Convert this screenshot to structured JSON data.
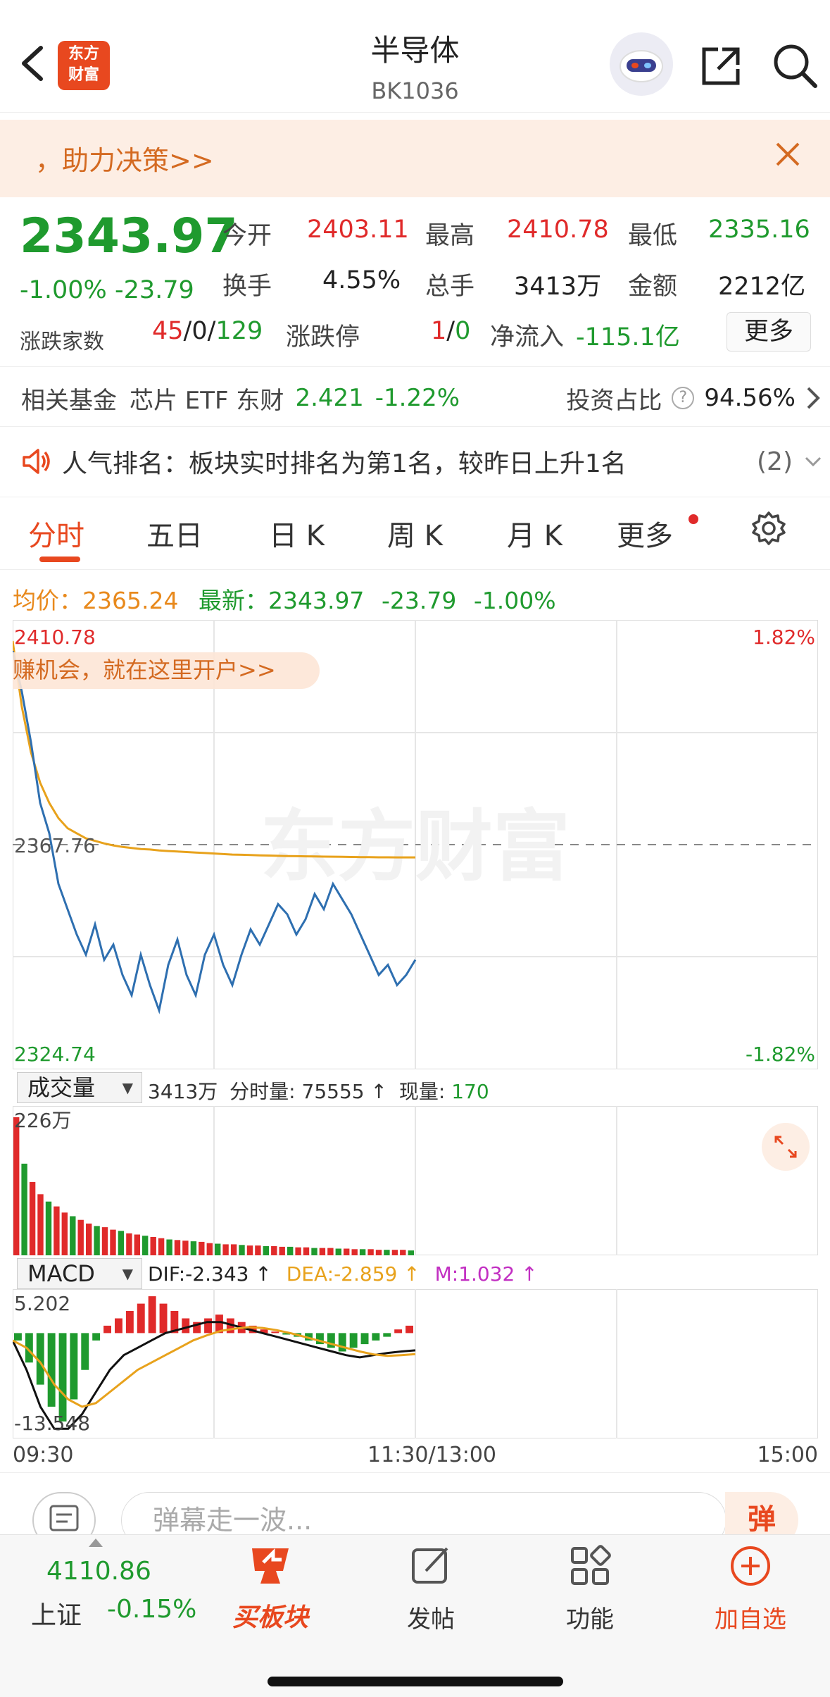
{
  "header": {
    "back_icon": "chevron-left-icon",
    "logo_line1": "东方",
    "logo_line2": "财富",
    "title": "半导体",
    "code": "BK1036"
  },
  "banner": {
    "text": "，助力决策>>",
    "close_icon": "close-icon"
  },
  "quote": {
    "price": "2343.97",
    "change_pct": "-1.00%",
    "change_val": "-23.79",
    "open_label": "今开",
    "open": "2403.11",
    "high_label": "最高",
    "high": "2410.78",
    "low_label": "最低",
    "low": "2335.16",
    "turnover_label": "换手",
    "turnover": "4.55%",
    "volume_label": "总手",
    "volume": "3413万",
    "amount_label": "金额",
    "amount": "2212亿",
    "breadth_label": "涨跌家数",
    "breadth_up": "45",
    "breadth_sep1": "/",
    "breadth_flat": "0",
    "breadth_sep2": "/",
    "breadth_down": "129",
    "limit_label": "涨跌停",
    "limit_up": "1",
    "limit_sep": "/",
    "limit_down": "0",
    "inflow_label": "净流入",
    "inflow": "-115.1亿",
    "more_label": "更多"
  },
  "fund": {
    "label": "相关基金",
    "name": "芯片 ETF 东财",
    "price": "2.421",
    "pct": "-1.22%",
    "ratio_label": "投资占比",
    "ratio": "94.56%"
  },
  "rank": {
    "text": "人气排名：板块实时排名为第1名，较昨日上升1名",
    "count": "(2)"
  },
  "tabs": [
    "分时",
    "五日",
    "日 K",
    "周 K",
    "月 K",
    "更多"
  ],
  "avg_row": {
    "avg_label": "均价：",
    "avg": "2365.24",
    "latest_label": "最新：",
    "latest": "2343.97",
    "chg": "-23.79",
    "pct": "-1.00%"
  },
  "chart_labels": {
    "max": "2410.78",
    "mid": "2367.76",
    "min": "2324.74",
    "max_pct": "1.82%",
    "min_pct": "-1.82%",
    "promo": "赚机会，就在这里开户>>",
    "watermark": "东方财富"
  },
  "volume": {
    "select": "成交量",
    "total": "3413万",
    "detail_label": "分时量:",
    "detail": "75555",
    "arrow": "↑",
    "now_label": "现量:",
    "now": "170",
    "max": "226万"
  },
  "macd": {
    "select": "MACD",
    "dif": "DIF:-2.343 ↑",
    "dea": "DEA:-2.859 ↑",
    "m": "M:1.032 ↑",
    "max": "5.202",
    "min": "-13.548"
  },
  "time_axis": [
    "09:30",
    "11:30/13:00",
    "15:00"
  ],
  "danmu": {
    "placeholder": "弹幕走一波...",
    "btn": "弹"
  },
  "bottom_nav": {
    "index_value": "4110.86",
    "index_name": "上证",
    "index_pct": "-0.15%",
    "buy": "买板块",
    "post": "发帖",
    "func": "功能",
    "add": "加自选"
  },
  "colors": {
    "up": "#e02a2a",
    "down": "#1f9a2e",
    "accent": "#e8481f",
    "avg_line": "#e8a21c",
    "price_line": "#2e6fb0"
  },
  "chart_data": [
    {
      "type": "line",
      "title": "分时",
      "ylim": [
        2324.74,
        2410.78
      ],
      "series": [
        {
          "name": "最新",
          "values": [
            2406,
            2398,
            2388,
            2376,
            2370,
            2360,
            2355,
            2350,
            2346,
            2352,
            2345,
            2348,
            2342,
            2338,
            2346,
            2340,
            2335,
            2344,
            2349,
            2342,
            2338,
            2346,
            2350,
            2344,
            2340,
            2346,
            2351,
            2348,
            2352,
            2356,
            2354,
            2350,
            2353,
            2358,
            2355,
            2360,
            2357,
            2354,
            2350,
            2346,
            2342,
            2344,
            2340,
            2342,
            2345
          ]
        },
        {
          "name": "均价",
          "values": [
            2408,
            2395,
            2386,
            2380,
            2376,
            2373,
            2371,
            2370,
            2369,
            2368.5,
            2368,
            2367.6,
            2367.3,
            2367.1,
            2366.9,
            2366.8,
            2366.6,
            2366.5,
            2366.4,
            2366.3,
            2366.2,
            2366.1,
            2366,
            2365.9,
            2365.8,
            2365.75,
            2365.7,
            2365.65,
            2365.6,
            2365.55,
            2365.5,
            2365.48,
            2365.45,
            2365.42,
            2365.4,
            2365.38,
            2365.35,
            2365.32,
            2365.3,
            2365.28,
            2365.26,
            2365.25,
            2365.24,
            2365.24,
            2365.24
          ]
        }
      ]
    },
    {
      "type": "bar",
      "title": "成交量",
      "ylim": [
        0,
        226
      ],
      "values": [
        226,
        150,
        120,
        100,
        88,
        80,
        70,
        64,
        58,
        52,
        48,
        46,
        42,
        40,
        36,
        34,
        32,
        30,
        28,
        26,
        25,
        24,
        23,
        22,
        20,
        19,
        18,
        18,
        17,
        16,
        16,
        15,
        15,
        14,
        14,
        13,
        13,
        12,
        12,
        12,
        11,
        11,
        10,
        10,
        10,
        9,
        9,
        9,
        9,
        8
      ]
    },
    {
      "type": "bar",
      "title": "MACD",
      "ylim": [
        -13.548,
        5.202
      ],
      "series": [
        {
          "name": "M",
          "values": [
            -1,
            -4,
            -7,
            -10,
            -12,
            -9,
            -5,
            -1,
            1,
            2,
            3,
            4,
            5,
            4,
            3,
            2,
            1.5,
            2,
            2.5,
            2,
            1.5,
            1,
            0.5,
            0.2,
            -0.2,
            -0.5,
            -1,
            -1.5,
            -2,
            -2.5,
            -2,
            -1.5,
            -1,
            -0.5,
            0.5,
            1
          ]
        },
        {
          "name": "DIF",
          "values": [
            -1,
            -5,
            -10,
            -13,
            -13,
            -11,
            -8,
            -5,
            -3,
            -2,
            -1,
            0,
            0.5,
            1,
            1.5,
            1.5,
            1,
            0.5,
            0,
            -0.5,
            -1,
            -1.5,
            -2,
            -2.5,
            -3,
            -3.3,
            -3,
            -2.7,
            -2.5,
            -2.343
          ]
        },
        {
          "name": "DEA",
          "values": [
            -1,
            -2,
            -4,
            -7,
            -9,
            -10,
            -9.5,
            -8,
            -6.5,
            -5,
            -4,
            -3,
            -2,
            -1,
            -0.3,
            0.3,
            0.6,
            0.8,
            0.7,
            0.4,
            0,
            -0.5,
            -1,
            -1.5,
            -2,
            -2.5,
            -2.9,
            -3.1,
            -3.0,
            -2.859
          ]
        }
      ]
    }
  ]
}
